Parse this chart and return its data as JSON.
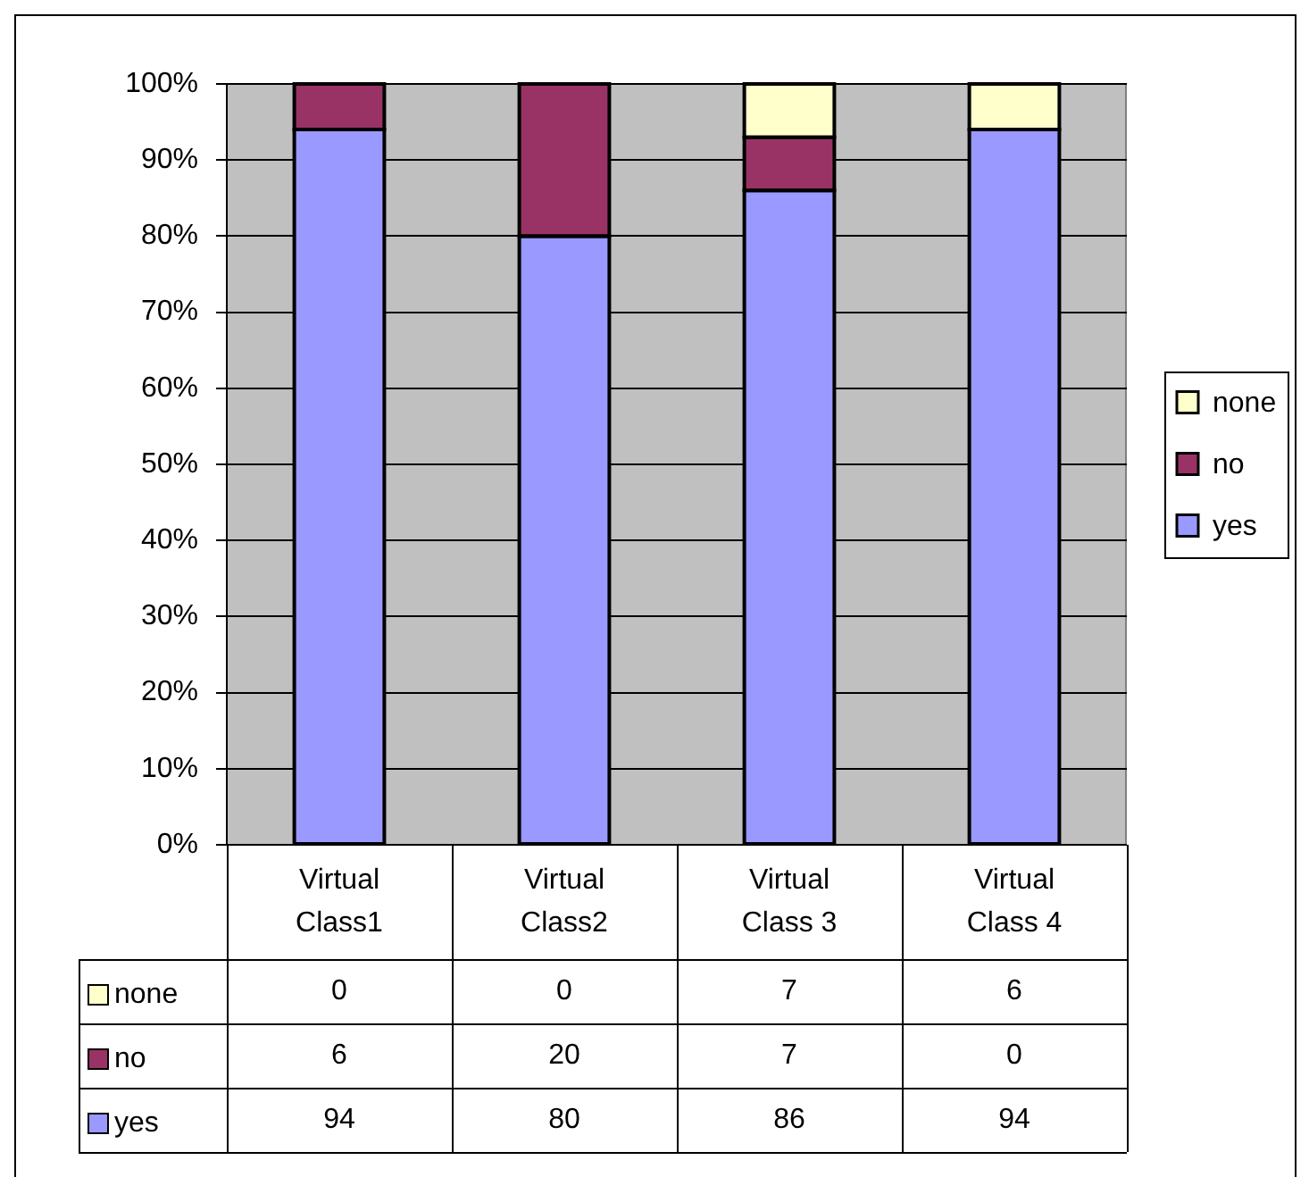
{
  "chart_data": {
    "type": "bar",
    "stacked": true,
    "categories": [
      "Virtual Class1",
      "Virtual Class2",
      "Virtual Class 3",
      "Virtual Class 4"
    ],
    "series": [
      {
        "name": "yes",
        "color": "#9999ff",
        "values": [
          94,
          80,
          86,
          94
        ]
      },
      {
        "name": "no",
        "color": "#993366",
        "values": [
          6,
          20,
          7,
          0
        ]
      },
      {
        "name": "none",
        "color": "#ffffcc",
        "values": [
          0,
          0,
          7,
          6
        ]
      }
    ],
    "ylim": [
      0,
      100
    ],
    "yticks": [
      {
        "value": 0,
        "label": "0%"
      },
      {
        "value": 10,
        "label": "10%"
      },
      {
        "value": 20,
        "label": "20%"
      },
      {
        "value": 30,
        "label": "30%"
      },
      {
        "value": 40,
        "label": "40%"
      },
      {
        "value": 50,
        "label": "50%"
      },
      {
        "value": 60,
        "label": "60%"
      },
      {
        "value": 70,
        "label": "70%"
      },
      {
        "value": 80,
        "label": "80%"
      },
      {
        "value": 90,
        "label": "90%"
      },
      {
        "value": 100,
        "label": "100%"
      }
    ],
    "grid": "y",
    "legend": "right",
    "data_labels": true
  }
}
